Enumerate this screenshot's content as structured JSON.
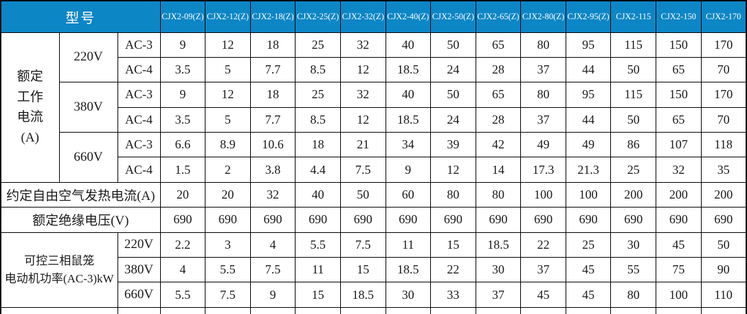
{
  "colors": {
    "header_bg": "#0d86c6",
    "header_text": "#ffffff",
    "border": "#000000",
    "body_text": "#1a1a1a"
  },
  "table": {
    "model_label": "型号",
    "models": [
      "CJX2-09(Z)",
      "CJX2-12(Z)",
      "CJX2-18(Z)",
      "CJX2-25(Z)",
      "CJX2-32(Z)",
      "CJX2-40(Z)",
      "CJX2-50(Z)",
      "CJX2-65(Z)",
      "CJX2-80(Z)",
      "CJX2-95(Z)",
      "CJX2-115",
      "CJX2-150",
      "CJX2-170"
    ],
    "sections": {
      "rated_current_label": "额定\n工作\n电流\n(A)",
      "power_label": "可控三相鼠笼\n电动机功率(AC-3)kW"
    },
    "rows": [
      {
        "kind": "current",
        "voltage": "220V",
        "type": "AC-3",
        "values": [
          "9",
          "12",
          "18",
          "25",
          "32",
          "40",
          "50",
          "65",
          "80",
          "95",
          "115",
          "150",
          "170"
        ]
      },
      {
        "kind": "current",
        "voltage": "220V",
        "type": "AC-4",
        "values": [
          "3.5",
          "5",
          "7.7",
          "8.5",
          "12",
          "18.5",
          "24",
          "28",
          "37",
          "44",
          "50",
          "65",
          "70"
        ]
      },
      {
        "kind": "current",
        "voltage": "380V",
        "type": "AC-3",
        "values": [
          "9",
          "12",
          "18",
          "25",
          "32",
          "40",
          "50",
          "65",
          "80",
          "95",
          "115",
          "150",
          "170"
        ]
      },
      {
        "kind": "current",
        "voltage": "380V",
        "type": "AC-4",
        "values": [
          "3.5",
          "5",
          "7.7",
          "8.5",
          "12",
          "18.5",
          "24",
          "28",
          "37",
          "44",
          "50",
          "65",
          "70"
        ]
      },
      {
        "kind": "current",
        "voltage": "660V",
        "type": "AC-3",
        "values": [
          "6.6",
          "8.9",
          "10.6",
          "18",
          "21",
          "34",
          "39",
          "42",
          "49",
          "49",
          "86",
          "107",
          "118"
        ]
      },
      {
        "kind": "current",
        "voltage": "660V",
        "type": "AC-4",
        "values": [
          "1.5",
          "2",
          "3.8",
          "4.4",
          "7.5",
          "9",
          "12",
          "14",
          "17.3",
          "21.3",
          "25",
          "32",
          "35"
        ]
      },
      {
        "kind": "full",
        "label": "约定自由空气发热电流(A)",
        "values": [
          "20",
          "20",
          "32",
          "40",
          "50",
          "60",
          "80",
          "80",
          "100",
          "100",
          "200",
          "200",
          "200"
        ]
      },
      {
        "kind": "full",
        "label": "额定绝缘电压(V)",
        "values": [
          "690",
          "690",
          "690",
          "690",
          "690",
          "690",
          "690",
          "690",
          "690",
          "690",
          "690",
          "690",
          "690"
        ]
      },
      {
        "kind": "power",
        "voltage": "220V",
        "values": [
          "2.2",
          "3",
          "4",
          "5.5",
          "7.5",
          "11",
          "15",
          "18.5",
          "22",
          "25",
          "30",
          "45",
          "50"
        ]
      },
      {
        "kind": "power",
        "voltage": "380V",
        "values": [
          "4",
          "5.5",
          "7.5",
          "11",
          "15",
          "18.5",
          "22",
          "30",
          "37",
          "45",
          "55",
          "75",
          "90"
        ]
      },
      {
        "kind": "power",
        "voltage": "660V",
        "values": [
          "5.5",
          "7.5",
          "9",
          "15",
          "18.5",
          "30",
          "33",
          "37",
          "45",
          "45",
          "80",
          "100",
          "110"
        ]
      }
    ]
  }
}
